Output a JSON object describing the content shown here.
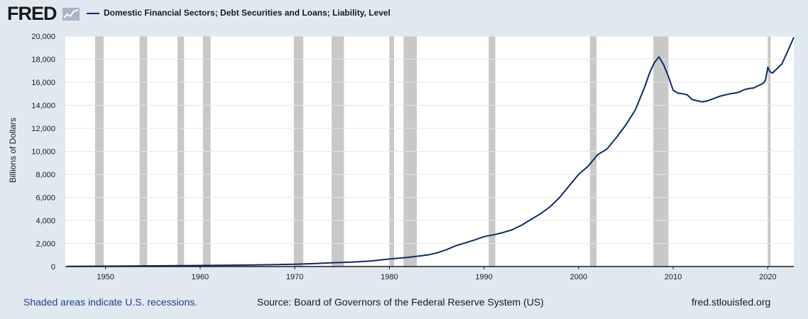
{
  "header": {
    "logo_text": "FRED",
    "legend_label": "Domestic Financial Sectors; Debt Securities and Loans; Liability, Level"
  },
  "footer": {
    "recession_note": "Shaded areas indicate U.S. recessions.",
    "source": "Source: Board of Governors of the Federal Reserve System (US)",
    "site": "fred.stlouisfed.org"
  },
  "icons": {
    "logo_graph": "fred-graph-icon"
  },
  "colors": {
    "series": "#0b2c6b",
    "recession": "#c8c8c8",
    "grid": "#ffffff",
    "plot_bg": "#ffffff",
    "page_bg": "#e1e9f0"
  },
  "chart_data": {
    "type": "line",
    "title": "",
    "ylabel": "Billions of Dollars",
    "xlabel": "",
    "xlim": [
      1945.75,
      2022.75
    ],
    "ylim": [
      0,
      20000
    ],
    "grid": true,
    "legend_position": "top-left",
    "x_ticks": [
      1950,
      1960,
      1970,
      1980,
      1990,
      2000,
      2010,
      2020
    ],
    "y_ticks": [
      0,
      2000,
      4000,
      6000,
      8000,
      10000,
      12000,
      14000,
      16000,
      18000,
      20000
    ],
    "y_tick_labels": [
      "0",
      "2,000",
      "4,000",
      "6,000",
      "8,000",
      "10,000",
      "12,000",
      "14,000",
      "16,000",
      "18,000",
      "20,000"
    ],
    "recessions": [
      [
        1948.9,
        1949.8
      ],
      [
        1953.6,
        1954.4
      ],
      [
        1957.6,
        1958.3
      ],
      [
        1960.3,
        1961.1
      ],
      [
        1969.9,
        1970.9
      ],
      [
        1973.9,
        1975.2
      ],
      [
        1980.0,
        1980.5
      ],
      [
        1981.5,
        1982.9
      ],
      [
        1990.5,
        1991.2
      ],
      [
        2001.2,
        2001.9
      ],
      [
        2007.9,
        2009.5
      ],
      [
        2020.0,
        2020.3
      ]
    ],
    "series": [
      {
        "name": "Domestic Financial Sectors; Debt Securities and Loans; Liability, Level",
        "x": [
          1946,
          1950,
          1955,
          1960,
          1965,
          1970,
          1972,
          1974,
          1976,
          1978,
          1980,
          1982,
          1984,
          1985,
          1986,
          1987,
          1988,
          1989,
          1990,
          1991,
          1992,
          1993,
          1994,
          1995,
          1996,
          1997,
          1998,
          1999,
          2000,
          2001,
          2002,
          2003,
          2004,
          2005,
          2006,
          2007,
          2007.5,
          2008,
          2008.5,
          2009,
          2009.5,
          2010,
          2010.5,
          2011,
          2011.5,
          2012,
          2012.5,
          2013,
          2013.5,
          2014,
          2014.5,
          2015,
          2015.5,
          2016,
          2016.5,
          2017,
          2017.5,
          2018,
          2018.5,
          2019,
          2019.5,
          2019.75,
          2020,
          2020.25,
          2020.5,
          2021,
          2021.5,
          2022,
          2022.75
        ],
        "y": [
          10,
          30,
          60,
          90,
          130,
          200,
          250,
          330,
          380,
          480,
          650,
          800,
          1000,
          1180,
          1450,
          1800,
          2050,
          2300,
          2600,
          2750,
          2950,
          3200,
          3600,
          4100,
          4600,
          5200,
          6000,
          7000,
          8000,
          8700,
          9700,
          10200,
          11200,
          12300,
          13600,
          15600,
          16800,
          17700,
          18200,
          17500,
          16500,
          15300,
          15050,
          15000,
          14900,
          14500,
          14400,
          14300,
          14350,
          14500,
          14650,
          14800,
          14900,
          15000,
          15050,
          15150,
          15350,
          15450,
          15500,
          15700,
          15900,
          16150,
          17300,
          16900,
          16800,
          17200,
          17600,
          18500,
          19900
        ]
      }
    ]
  }
}
